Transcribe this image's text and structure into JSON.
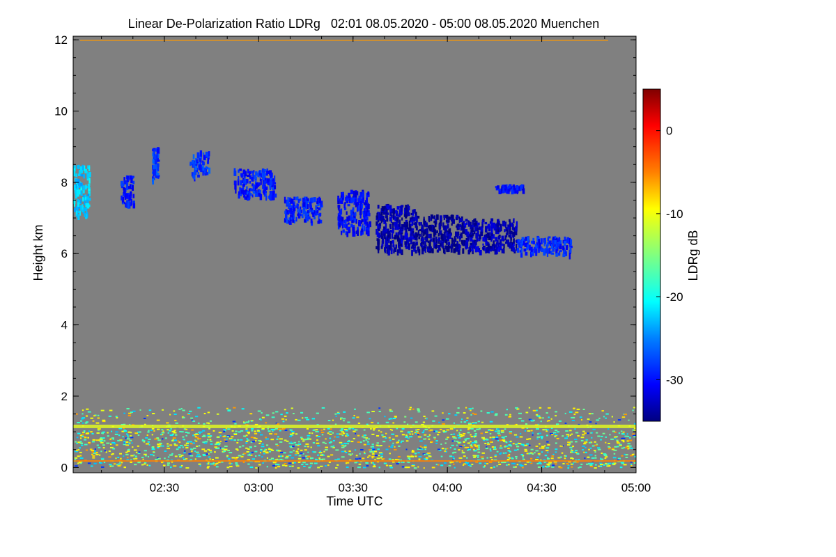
{
  "chart_data": {
    "type": "heatmap",
    "title": "Linear De-Polarization Ratio LDRg   02:01 08.05.2020 - 05:00 08.05.2020 Muenchen",
    "xlabel": "Time UTC",
    "ylabel": "Height km",
    "colorbar_label": "LDRg dB",
    "xlim_minutes_utc": [
      121,
      300
    ],
    "ylim_km": [
      -0.15,
      12.1
    ],
    "x_ticks": [
      {
        "minute": 150,
        "label": "02:30"
      },
      {
        "minute": 180,
        "label": "03:00"
      },
      {
        "minute": 210,
        "label": "03:30"
      },
      {
        "minute": 240,
        "label": "04:00"
      },
      {
        "minute": 270,
        "label": "04:30"
      },
      {
        "minute": 300,
        "label": "05:00"
      }
    ],
    "y_ticks": [
      {
        "value": 0,
        "label": "0"
      },
      {
        "value": 2,
        "label": "2"
      },
      {
        "value": 4,
        "label": "4"
      },
      {
        "value": 6,
        "label": "6"
      },
      {
        "value": 8,
        "label": "8"
      },
      {
        "value": 10,
        "label": "10"
      },
      {
        "value": 12,
        "label": "12"
      }
    ],
    "colorbar_range_db": [
      -35,
      5
    ],
    "colorbar_ticks": [
      {
        "value": 0,
        "label": "0"
      },
      {
        "value": -10,
        "label": "-10"
      },
      {
        "value": -20,
        "label": "-20"
      },
      {
        "value": -30,
        "label": "-30"
      }
    ],
    "background_color": "#808080",
    "cloud_regions": [
      {
        "name": "cirrus-start",
        "t": [
          121,
          126
        ],
        "h": [
          7.1,
          8.5
        ],
        "ldr": -22
      },
      {
        "name": "cirrus-fragment-1",
        "t": [
          136,
          140
        ],
        "h": [
          7.4,
          8.2
        ],
        "ldr": -29
      },
      {
        "name": "cirrus-fragment-2",
        "t": [
          146,
          148
        ],
        "h": [
          8.1,
          9.0
        ],
        "ldr": -28
      },
      {
        "name": "cirrus-fragment-3",
        "t": [
          158,
          164
        ],
        "h": [
          8.2,
          8.9
        ],
        "ldr": -28
      },
      {
        "name": "cirrus-main-1",
        "t": [
          172,
          185
        ],
        "h": [
          7.6,
          8.4
        ],
        "ldr": -29
      },
      {
        "name": "cirrus-main-2",
        "t": [
          188,
          200
        ],
        "h": [
          6.9,
          7.6
        ],
        "ldr": -29
      },
      {
        "name": "cirrus-main-3",
        "t": [
          205,
          215
        ],
        "h": [
          6.6,
          7.8
        ],
        "ldr": -30
      },
      {
        "name": "cirrus-main-4",
        "t": [
          217,
          230
        ],
        "h": [
          6.1,
          7.4
        ],
        "ldr": -33
      },
      {
        "name": "cirrus-main-5",
        "t": [
          230,
          245
        ],
        "h": [
          6.1,
          7.1
        ],
        "ldr": -34
      },
      {
        "name": "cirrus-main-6",
        "t": [
          245,
          262
        ],
        "h": [
          6.1,
          7.0
        ],
        "ldr": -33
      },
      {
        "name": "cirrus-main-7",
        "t": [
          262,
          279
        ],
        "h": [
          6.0,
          6.5
        ],
        "ldr": -29
      },
      {
        "name": "cirrus-upper",
        "t": [
          255,
          264
        ],
        "h": [
          7.8,
          7.95
        ],
        "ldr": -30
      },
      {
        "name": "boundary-layer",
        "t": [
          121,
          300
        ],
        "h": [
          0,
          1.7
        ],
        "ldr": -18
      }
    ]
  }
}
